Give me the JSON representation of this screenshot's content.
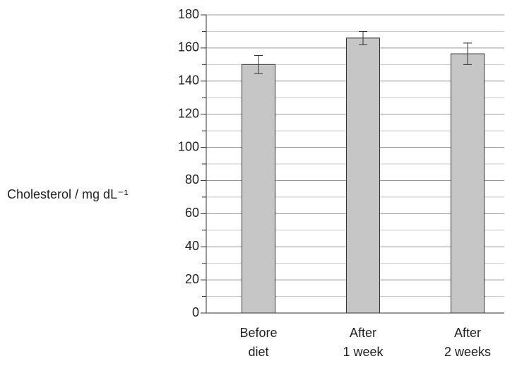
{
  "chart_data": {
    "type": "bar",
    "y_label": "Cholesterol / mg dL⁻¹",
    "categories": [
      [
        "Before",
        "diet"
      ],
      [
        "After",
        "1 week"
      ],
      [
        "After",
        "2 weeks"
      ]
    ],
    "values": [
      150,
      166,
      156.5
    ],
    "errors": [
      5.5,
      4,
      6.5
    ],
    "color": "#c6c6c6",
    "ylim": [
      0,
      180
    ],
    "yticks": [
      0,
      20,
      40,
      60,
      80,
      100,
      120,
      140,
      160,
      180
    ],
    "minor_yticks": [
      10,
      30,
      50,
      70,
      90,
      110,
      130,
      150,
      170
    ],
    "grid": true
  }
}
